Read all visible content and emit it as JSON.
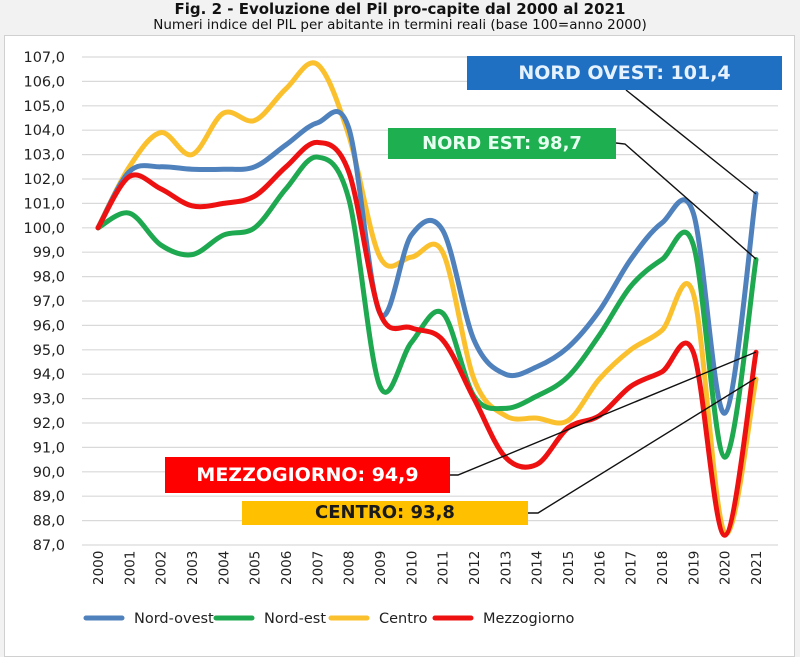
{
  "header": {
    "title": "Fig. 2 - Evoluzione del Pil pro-capite dal 2000 al 2021",
    "subtitle": "Numeri indice del PIL per abitante in termini reali (base 100=anno 2000)"
  },
  "chart_data": {
    "type": "line",
    "title": "Fig. 2 - Evoluzione del Pil pro-capite dal 2000 al 2021",
    "subtitle": "Numeri indice del PIL per abitante in termini reali (base 100=anno 2000)",
    "xlabel": "",
    "ylabel": "",
    "ylim": [
      87.0,
      107.0
    ],
    "y_ticks": [
      "107,0",
      "106,0",
      "105,0",
      "104,0",
      "103,0",
      "102,0",
      "101,0",
      "100,0",
      "99,0",
      "98,0",
      "97,0",
      "96,0",
      "95,0",
      "94,0",
      "93,0",
      "92,0",
      "91,0",
      "90,0",
      "89,0",
      "88,0",
      "87,0"
    ],
    "categories": [
      "2000",
      "2001",
      "2002",
      "2003",
      "2004",
      "2005",
      "2006",
      "2007",
      "2008",
      "2009",
      "2010",
      "2011",
      "2012",
      "2013",
      "2014",
      "2015",
      "2016",
      "2017",
      "2018",
      "2019",
      "2020",
      "2021"
    ],
    "grid": true,
    "legend_position": "bottom",
    "smooth": true,
    "series": [
      {
        "name": "Nord-ovest",
        "color": "#4f81bd",
        "values": [
          100.0,
          102.3,
          102.5,
          102.4,
          102.4,
          102.5,
          103.4,
          104.3,
          104.1,
          96.5,
          99.7,
          99.9,
          95.4,
          94.0,
          94.3,
          95.1,
          96.6,
          98.7,
          100.2,
          100.6,
          92.4,
          101.4
        ]
      },
      {
        "name": "Nord-est",
        "color": "#1ea84f",
        "values": [
          100.0,
          100.6,
          99.3,
          98.9,
          99.7,
          100.0,
          101.6,
          102.9,
          101.2,
          93.5,
          95.3,
          96.5,
          93.1,
          92.6,
          93.1,
          93.9,
          95.6,
          97.6,
          98.7,
          99.3,
          90.6,
          98.7
        ]
      },
      {
        "name": "Centro",
        "color": "#fbc02d",
        "values": [
          100.0,
          102.5,
          103.9,
          103.0,
          104.7,
          104.4,
          105.7,
          106.7,
          103.8,
          98.8,
          98.8,
          99.0,
          93.8,
          92.3,
          92.2,
          92.1,
          93.8,
          95.0,
          95.8,
          97.3,
          87.5,
          93.8
        ]
      },
      {
        "name": "Mezzogiorno",
        "color": "#ee1111",
        "values": [
          100.0,
          102.1,
          101.6,
          100.9,
          101.0,
          101.3,
          102.5,
          103.5,
          102.3,
          96.5,
          95.9,
          95.4,
          93.0,
          90.6,
          90.3,
          91.8,
          92.3,
          93.5,
          94.1,
          94.9,
          87.4,
          94.9
        ]
      }
    ],
    "annotations": [
      {
        "text": "NORD OVEST: 101,4",
        "series": "Nord-ovest",
        "x": "2021",
        "value": 101.4,
        "bg": "#1f6fc3",
        "fg": "#e6f3ff"
      },
      {
        "text": "NORD EST: 98,7",
        "series": "Nord-est",
        "x": "2021",
        "value": 98.7,
        "bg": "#1eb050",
        "fg": "#e6fff0"
      },
      {
        "text": "MEZZOGIORNO: 94,9",
        "series": "Mezzogiorno",
        "x": "2021",
        "value": 94.9,
        "bg": "#ff0000",
        "fg": "#ffffff"
      },
      {
        "text": "CENTRO: 93,8",
        "series": "Centro",
        "x": "2021",
        "value": 93.8,
        "bg": "#ffc000",
        "fg": "#1a1a1a"
      }
    ]
  }
}
